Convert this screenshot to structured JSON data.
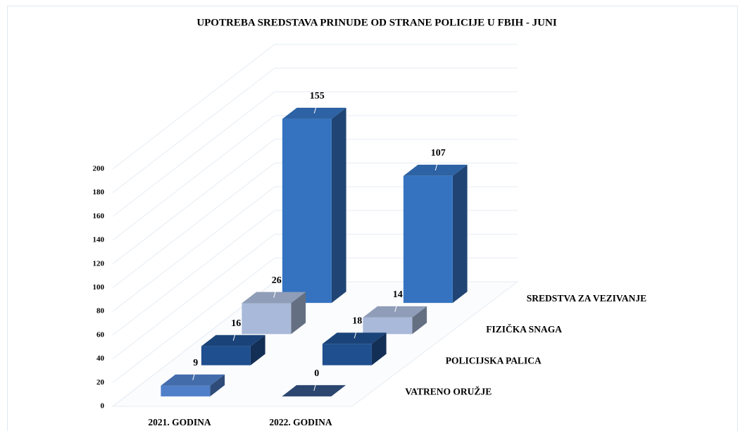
{
  "chart_data": {
    "type": "bar3d",
    "title": "UPOTREBA SREDSTAVA PRINUDE OD STRANE POLICIJE U FBIH  -  JUNI",
    "categories": [
      "2021. GODINA",
      "2022. GODINA"
    ],
    "series": [
      {
        "name": "VATRENO ORUŽJE",
        "color": "#4f7fc9",
        "values": [
          9,
          0
        ]
      },
      {
        "name": "POLICIJSKA PALICA",
        "color": "#1f4f8e",
        "values": [
          16,
          18
        ]
      },
      {
        "name": "FIZIČKA SNAGA",
        "color": "#a9b9d9",
        "values": [
          26,
          14
        ]
      },
      {
        "name": "SREDSTVA ZA VEZIVANJE",
        "color": "#3573c1",
        "values": [
          155,
          107
        ]
      }
    ],
    "ylim": [
      0,
      200
    ],
    "yticks": [
      0,
      20,
      40,
      60,
      80,
      100,
      120,
      140,
      160,
      180,
      200
    ],
    "grid": true
  }
}
